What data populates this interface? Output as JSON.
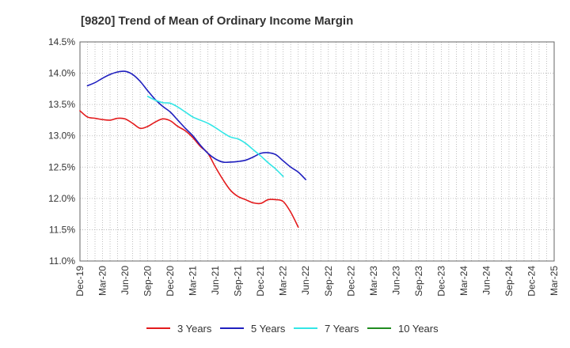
{
  "chart_data": {
    "type": "line",
    "title": "[9820]  Trend of Mean of Ordinary Income Margin",
    "xlabel": "",
    "ylabel": "",
    "x_ticks": [
      "Dec-19",
      "Mar-20",
      "Jun-20",
      "Sep-20",
      "Dec-20",
      "Mar-21",
      "Jun-21",
      "Sep-21",
      "Dec-21",
      "Mar-22",
      "Jun-22",
      "Sep-22",
      "Dec-22",
      "Mar-23",
      "Jun-23",
      "Sep-23",
      "Dec-23",
      "Mar-24",
      "Jun-24",
      "Sep-24",
      "Dec-24",
      "Mar-25"
    ],
    "y_ticks": [
      "11.0%",
      "11.5%",
      "12.0%",
      "12.5%",
      "13.0%",
      "13.5%",
      "14.0%",
      "14.5%"
    ],
    "ylim": [
      11.0,
      14.5
    ],
    "grid": true,
    "legend_position": "bottom",
    "series": [
      {
        "name": "3 Years",
        "color": "#e31a1c",
        "start_index": 0,
        "values": [
          13.4,
          13.3,
          13.28,
          13.26,
          13.25,
          13.28,
          13.27,
          13.2,
          13.12,
          13.15,
          13.22,
          13.27,
          13.24,
          13.15,
          13.08,
          12.97,
          12.83,
          12.72,
          12.5,
          12.3,
          12.13,
          12.03,
          11.98,
          11.93,
          11.92,
          11.98,
          11.98,
          11.95,
          11.78,
          11.54
        ]
      },
      {
        "name": "5 Years",
        "color": "#1f1fbf",
        "start_index": 1,
        "values": [
          13.8,
          13.85,
          13.92,
          13.98,
          14.02,
          14.03,
          13.98,
          13.87,
          13.72,
          13.58,
          13.47,
          13.38,
          13.25,
          13.12,
          13.0,
          12.85,
          12.72,
          12.63,
          12.58,
          12.58,
          12.59,
          12.61,
          12.66,
          12.72,
          12.73,
          12.7,
          12.6,
          12.5,
          12.42,
          12.3
        ]
      },
      {
        "name": "7 Years",
        "color": "#33e6e6",
        "start_index": 9,
        "values": [
          13.63,
          13.57,
          13.53,
          13.52,
          13.46,
          13.38,
          13.3,
          13.25,
          13.2,
          13.13,
          13.05,
          12.98,
          12.95,
          12.88,
          12.78,
          12.68,
          12.57,
          12.47,
          12.35
        ]
      },
      {
        "name": "10 Years",
        "color": "#1f8c1f",
        "start_index": 0,
        "values": []
      }
    ]
  }
}
